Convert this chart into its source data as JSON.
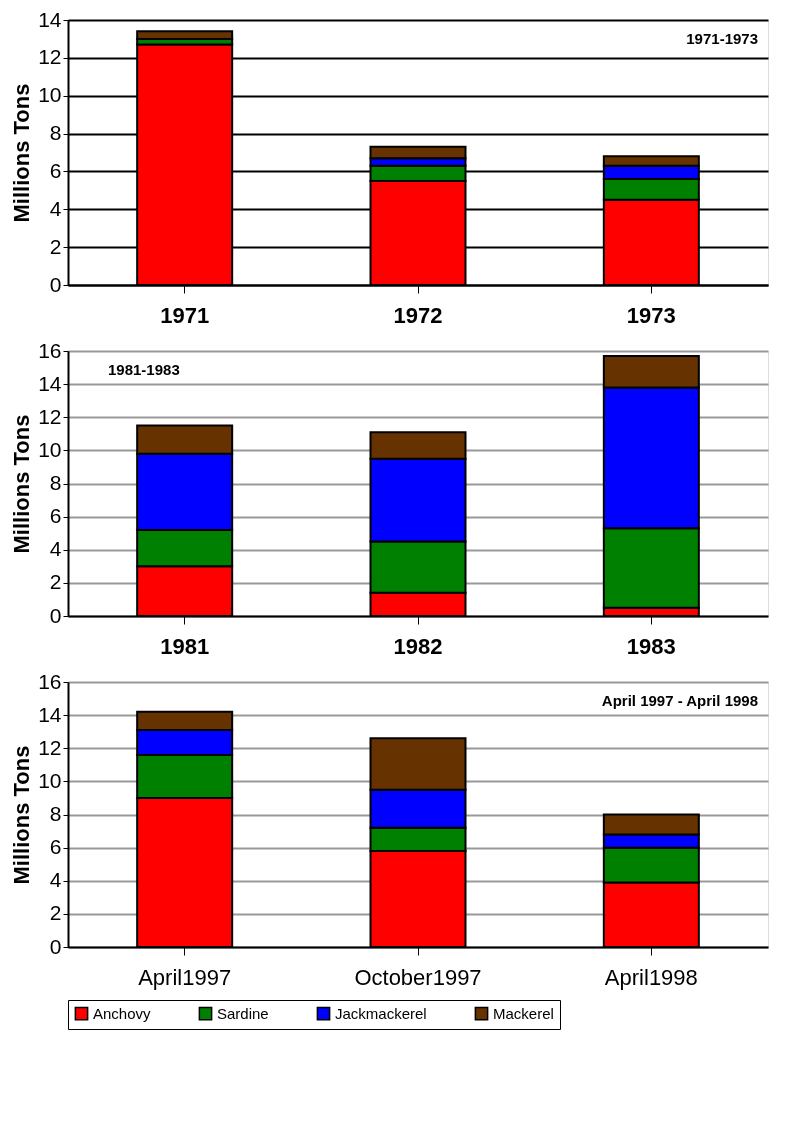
{
  "chart_data": [
    {
      "type": "bar",
      "stacked": true,
      "ylabel": "Millions Tons",
      "categories": [
        "1971",
        "1972",
        "1973"
      ],
      "ylim": [
        0,
        14
      ],
      "yticks": [
        0,
        2,
        4,
        6,
        8,
        10,
        12,
        14
      ],
      "grid": "y",
      "annotations": [
        "1971-1973"
      ],
      "series": [
        {
          "color": "#ff0000",
          "values": [
            12.7,
            5.5,
            4.5
          ]
        },
        {
          "color": "#008000",
          "values": [
            0.3,
            0.8,
            1.1
          ]
        },
        {
          "color": "#0000ff",
          "values": [
            0,
            0.4,
            0.7
          ]
        },
        {
          "color": "#663300",
          "values": [
            0.4,
            0.6,
            0.5
          ]
        }
      ]
    },
    {
      "type": "bar",
      "stacked": true,
      "ylabel": "Millions Tons",
      "categories": [
        "1981",
        "1982",
        "1983"
      ],
      "ylim": [
        0,
        16
      ],
      "yticks": [
        0,
        2,
        4,
        6,
        8,
        10,
        12,
        14,
        16
      ],
      "grid": "y",
      "annotations": [
        "1981-1983"
      ],
      "series": [
        {
          "color": "#ff0000",
          "values": [
            3.0,
            1.4,
            0.5
          ]
        },
        {
          "color": "#008000",
          "values": [
            2.2,
            3.1,
            4.8
          ]
        },
        {
          "color": "#0000ff",
          "values": [
            4.6,
            5.0,
            8.5
          ]
        },
        {
          "color": "#663300",
          "values": [
            1.7,
            1.6,
            1.9
          ]
        }
      ]
    },
    {
      "type": "bar",
      "stacked": true,
      "ylabel": "Millions Tons",
      "categories": [
        "April1997",
        "October1997",
        "April1998"
      ],
      "ylim": [
        0,
        16
      ],
      "yticks": [
        0,
        2,
        4,
        6,
        8,
        10,
        12,
        14,
        16
      ],
      "grid": "y",
      "legend": "bottom",
      "annotations": [
        "April 1997 - April 1998"
      ],
      "series": [
        {
          "name": "Anchovy",
          "color": "#ff0000",
          "values": [
            9.0,
            5.8,
            3.9
          ]
        },
        {
          "name": "Sardine",
          "color": "#008000",
          "values": [
            2.6,
            1.4,
            2.1
          ]
        },
        {
          "name": "Jackmackerel",
          "color": "#0000ff",
          "values": [
            1.5,
            2.3,
            0.8
          ]
        },
        {
          "name": "Mackerel",
          "color": "#663300",
          "values": [
            1.1,
            3.1,
            1.2
          ]
        }
      ]
    }
  ]
}
